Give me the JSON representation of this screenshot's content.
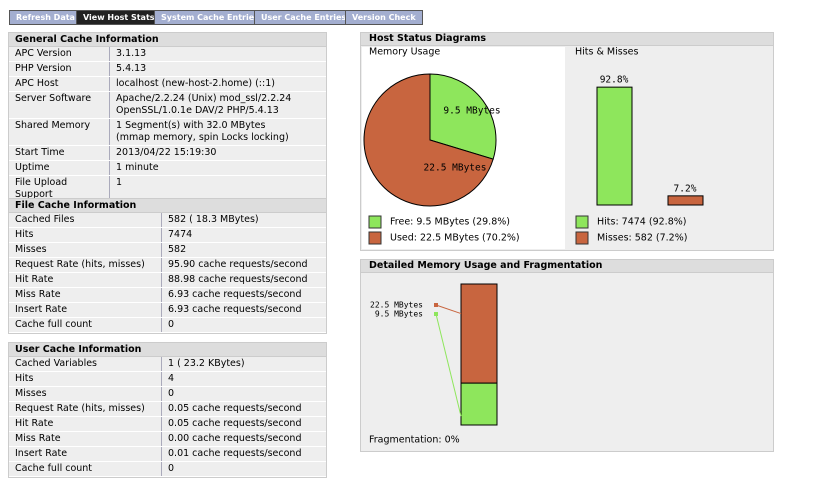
{
  "nav": [
    "Refresh Data",
    "View Host Stats",
    "System Cache Entries",
    "User Cache Entries",
    "Version Check"
  ],
  "sections": [
    {
      "title": "General Cache Information",
      "rows": [
        [
          "APC Version",
          "3.1.13"
        ],
        [
          "PHP Version",
          "5.4.13"
        ],
        [
          "APC Host",
          "localhost (new-host-2.home) (::1)"
        ],
        [
          "Server Software",
          "Apache/2.2.24 (Unix) mod_ssl/2.2.24\nOpenSSL/1.0.1e DAV/2 PHP/5.4.13"
        ],
        [
          "Shared Memory",
          "1 Segment(s) with 32.0 MBytes\n(mmap memory, spin Locks locking)"
        ],
        [
          "Start Time",
          "2013/04/22 15:19:30"
        ],
        [
          "Uptime",
          "1 minute"
        ],
        [
          "File Upload Support",
          "1"
        ]
      ]
    },
    {
      "title": "File Cache Information",
      "rows": [
        [
          "Cached Files",
          "582 ( 18.3 MBytes)"
        ],
        [
          "Hits",
          "7474"
        ],
        [
          "Misses",
          "582"
        ],
        [
          "Request Rate (hits, misses)",
          "95.90 cache requests/second"
        ],
        [
          "Hit Rate",
          "88.98 cache requests/second"
        ],
        [
          "Miss Rate",
          "6.93 cache requests/second"
        ],
        [
          "Insert Rate",
          "6.93 cache requests/second"
        ],
        [
          "Cache full count",
          "0"
        ]
      ]
    },
    {
      "title": "User Cache Information",
      "rows": [
        [
          "Cached Variables",
          "1 ( 23.2 KBytes)"
        ],
        [
          "Hits",
          "4"
        ],
        [
          "Misses",
          "0"
        ],
        [
          "Request Rate (hits, misses)",
          "0.05 cache requests/second"
        ],
        [
          "Hit Rate",
          "0.05 cache requests/second"
        ],
        [
          "Miss Rate",
          "0.00 cache requests/second"
        ],
        [
          "Insert Rate",
          "0.01 cache requests/second"
        ],
        [
          "Cache full count",
          "0"
        ]
      ]
    }
  ],
  "host_status": {
    "title": "Host Status Diagrams",
    "memory": {
      "type": "pie",
      "title": "Memory Usage",
      "values": [
        9.5,
        22.5
      ],
      "value_labels": [
        "9.5 MBytes",
        "22.5 MBytes"
      ],
      "colors": [
        "#8ee65c",
        "#c8653f"
      ],
      "legend": [
        "Free: 9.5 MBytes (29.8%)",
        "Used: 22.5 MBytes (70.2%)"
      ]
    },
    "hits": {
      "type": "bar",
      "title": "Hits & Misses",
      "values": [
        92.8,
        7.2
      ],
      "value_labels": [
        "92.8%",
        "7.2%"
      ],
      "colors": [
        "#8ee65c",
        "#c8653f"
      ],
      "legend": [
        "Hits: 7474 (92.8%)",
        "Misses: 582 (7.2%)"
      ]
    }
  },
  "fragmentation": {
    "type": "bar",
    "title": "Detailed Memory Usage and Fragmentation",
    "values": [
      22.5,
      9.5
    ],
    "value_labels": [
      "22.5 MBytes",
      "9.5 MBytes"
    ],
    "colors": [
      "#c8653f",
      "#8ee65c"
    ],
    "footer": "Fragmentation: 0%"
  }
}
